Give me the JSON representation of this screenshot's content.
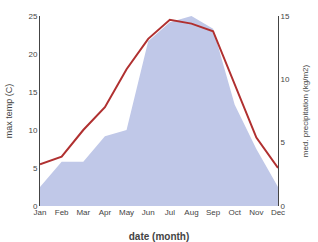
{
  "chart_data": {
    "type": "line",
    "categories": [
      "Jan",
      "Feb",
      "Mar",
      "Apr",
      "May",
      "Jun",
      "Jul",
      "Aug",
      "Sep",
      "Oct",
      "Nov",
      "Dec"
    ],
    "series": [
      {
        "type": "area",
        "axis": "y2",
        "color": "#c0c8e8",
        "values": [
          1.5,
          3.5,
          3.5,
          5.5,
          6,
          13,
          14.5,
          15,
          14,
          8,
          4.5,
          1.5
        ]
      },
      {
        "type": "line",
        "color": "#b03030",
        "values": [
          5.5,
          6.5,
          10,
          13,
          18,
          22,
          24.5,
          24,
          23,
          16,
          9,
          5
        ]
      }
    ],
    "xlabel": "date (month)",
    "ylabel": "max temp (C)",
    "y2label": "med. precipitation (kg/m2)",
    "ylim": [
      0,
      25
    ],
    "yticks": [
      0,
      5,
      10,
      15,
      20,
      25
    ],
    "y2lim": [
      0,
      15
    ],
    "y2ticks": [
      0,
      5,
      10,
      15
    ],
    "grid": false
  }
}
